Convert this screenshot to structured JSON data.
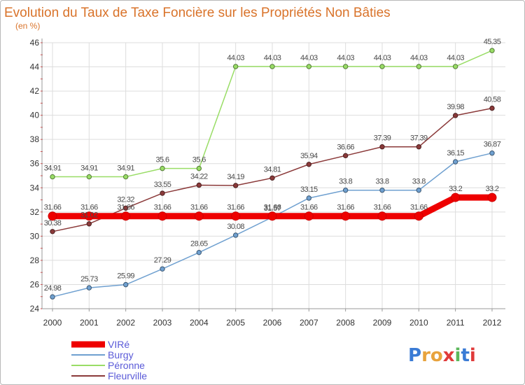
{
  "chart_data": {
    "type": "line",
    "title": "Evolution du Taux de Taxe Foncière sur les Propriétés Non Bâties",
    "subtitle": "(en %)",
    "x": [
      "2000",
      "2001",
      "2002",
      "2003",
      "2004",
      "2005",
      "2006",
      "2007",
      "2008",
      "2009",
      "2010",
      "2011",
      "2012"
    ],
    "ylim": [
      24,
      46
    ],
    "yticks": [
      24,
      26,
      28,
      30,
      32,
      34,
      36,
      38,
      40,
      42,
      44,
      46
    ],
    "grid": true,
    "legend_position": "bottom-left",
    "series": [
      {
        "name": "VIRé",
        "color": "#ee0000",
        "emphasis": true,
        "values": [
          31.66,
          31.66,
          31.66,
          31.66,
          31.66,
          31.66,
          31.66,
          31.66,
          31.66,
          31.66,
          31.66,
          33.2,
          33.2
        ],
        "labels": [
          "31.66",
          "31.66",
          "31.66",
          "31.66",
          "31.66",
          "31.66",
          "31.66",
          "31.66",
          "31.66",
          "31.66",
          "31.66",
          "33.2",
          "33.2"
        ]
      },
      {
        "name": "Burgy",
        "color": "#6fa0d0",
        "emphasis": false,
        "values": [
          24.98,
          25.73,
          25.99,
          27.29,
          28.65,
          30.08,
          31.57,
          33.15,
          33.8,
          33.8,
          33.8,
          36.15,
          36.87
        ],
        "labels": [
          "24.98",
          "25.73",
          "25.99",
          "27.29",
          "28.65",
          "30.08",
          "31.57",
          "33.15",
          "33.8",
          "33.8",
          "33.8",
          "36.15",
          "36.87"
        ]
      },
      {
        "name": "Péronne",
        "color": "#99dd66",
        "emphasis": false,
        "values": [
          34.91,
          34.91,
          34.91,
          35.6,
          35.6,
          44.03,
          44.03,
          44.03,
          44.03,
          44.03,
          44.03,
          44.03,
          45.35
        ],
        "labels": [
          "34.91",
          "34.91",
          "34.91",
          "35.6",
          "35.6",
          "44.03",
          "44.03",
          "44.03",
          "44.03",
          "44.03",
          "44.03",
          "44.03",
          "45.35"
        ]
      },
      {
        "name": "Fleurville",
        "color": "#8b3a3a",
        "emphasis": false,
        "values": [
          30.38,
          31.02,
          32.32,
          33.55,
          34.22,
          34.19,
          34.81,
          35.94,
          36.66,
          37.39,
          37.39,
          39.98,
          40.58
        ],
        "labels": [
          "30.38",
          "31.02",
          "32.32",
          "33.55",
          "34.22",
          "34.19",
          "34.81",
          "35.94",
          "36.66",
          "37.39",
          "37.39",
          "39.98",
          "40.58"
        ]
      }
    ]
  },
  "logo": {
    "text": "Proxiti"
  }
}
